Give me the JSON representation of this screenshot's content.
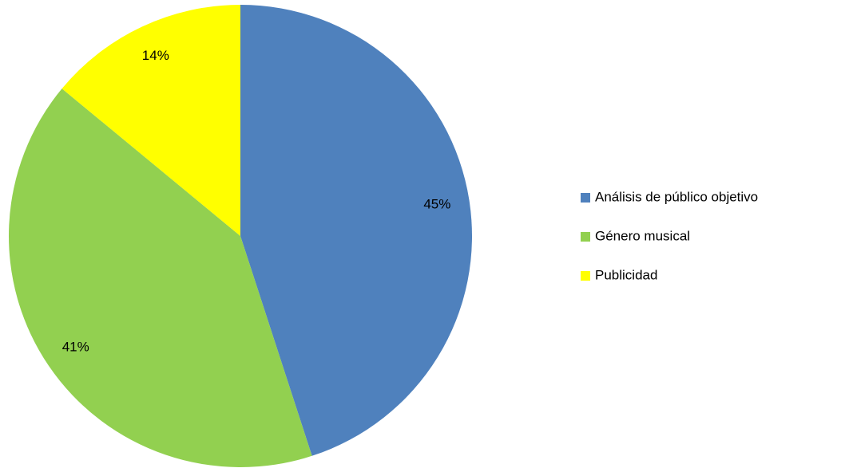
{
  "chart_data": {
    "type": "pie",
    "categories": [
      "Análisis de público objetivo",
      "Género musical",
      "Publicidad"
    ],
    "values": [
      45,
      41,
      14
    ],
    "value_labels": [
      "45%",
      "41%",
      "14%"
    ],
    "colors": [
      "#4f81bd",
      "#92d050",
      "#ffff00"
    ]
  }
}
